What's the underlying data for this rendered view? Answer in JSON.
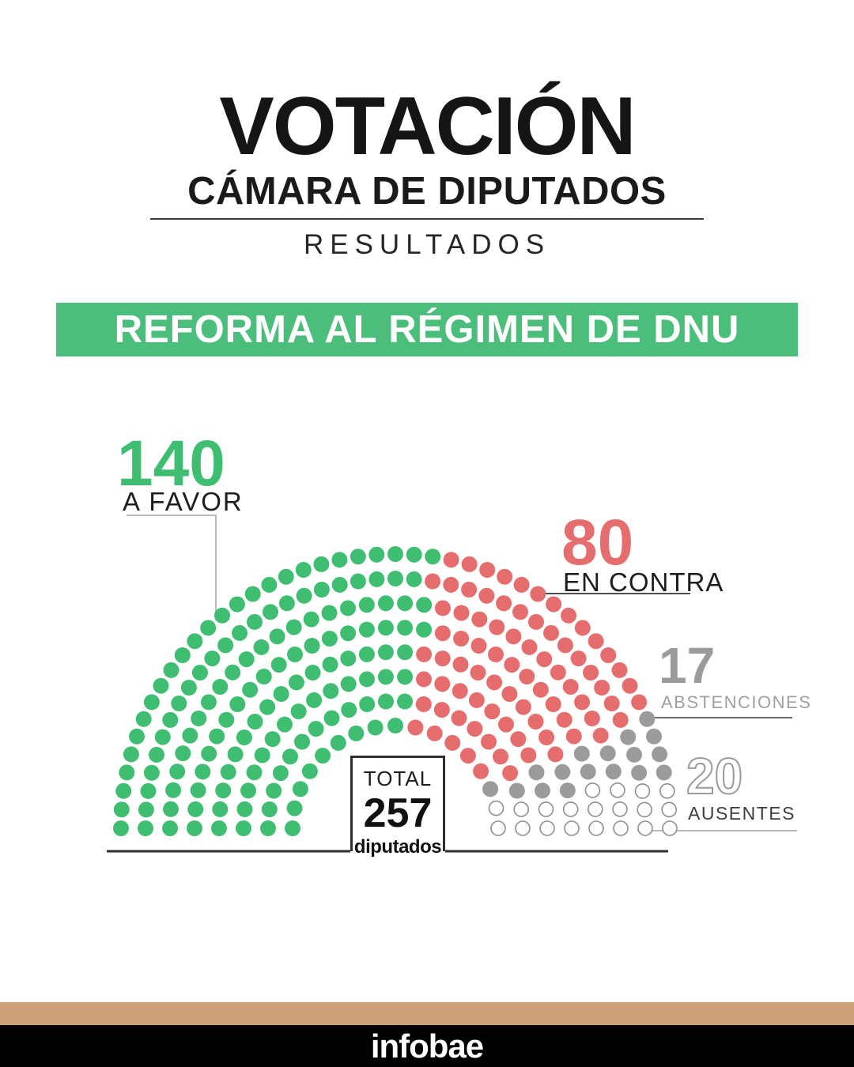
{
  "header": {
    "title": "VOTACIÓN",
    "subtitle": "CÁMARA DE DIPUTADOS",
    "tagline": "RESULTADOS"
  },
  "banner": {
    "label": "REFORMA AL RÉGIMEN DE DNU",
    "bg": "#4cbe7b"
  },
  "chart_data": {
    "type": "parliament",
    "title": "REFORMA AL RÉGIMEN DE DNU",
    "total_seats": 257,
    "rows": 8,
    "seats_per_row": [
      17,
      22,
      26,
      30,
      34,
      38,
      43,
      47
    ],
    "groups": [
      {
        "label": "A FAVOR",
        "value": 140,
        "color": "#3fbe72",
        "style": "filled"
      },
      {
        "label": "EN CONTRA",
        "value": 80,
        "color": "#e66d6e",
        "style": "filled"
      },
      {
        "label": "ABSTENCIONES",
        "value": 17,
        "color": "#9b9b9b",
        "style": "filled"
      },
      {
        "label": "AUSENTES",
        "value": 20,
        "color": "#ffffff",
        "stroke": "#8f8f8f",
        "style": "outline"
      }
    ],
    "legend_position": "around-arc",
    "center_label": {
      "top": "TOTAL",
      "value": "257",
      "unit": "diputados"
    }
  },
  "footer": {
    "brand": "infobae",
    "bar_color": "#cda17a",
    "band_color": "#000000"
  }
}
